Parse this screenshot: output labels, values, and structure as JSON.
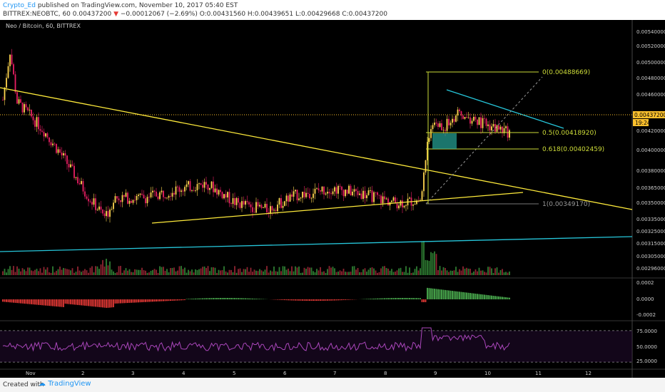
{
  "header": {
    "author": "Crypto_Ed",
    "published": "published on TradingView.com, November 10, 2017 05:40 EST",
    "symbol_line": "BITTREX:NEOBTC, 60",
    "last": "0.00437200",
    "change_arrow": "▼",
    "change": "−0.00012067 (−2.69%)",
    "ohlc": "O:0.00431560 H:0.00439651 L:0.00429668 C:0.00437200"
  },
  "pane_title": "Neo / Bitcoin, 60, BITTREX",
  "price_axis": {
    "labels": [
      "0.00540000",
      "0.00520000",
      "0.00500000",
      "0.00480000",
      "0.00460000",
      "0.00420000",
      "0.00400000",
      "0.00380000",
      "0.00365000",
      "0.00350000",
      "0.00335000",
      "0.00325000",
      "0.00315000",
      "0.00305000",
      "0.00296000"
    ],
    "current_price": "0.00437200",
    "countdown": "19:24"
  },
  "macd_axis": {
    "labels": [
      "0.0002",
      "0.0000",
      "-0.0002"
    ]
  },
  "rsi_axis": {
    "labels": [
      "75.0000",
      "50.0000",
      "25.0000"
    ]
  },
  "time_axis": {
    "labels": [
      "Nov",
      "2",
      "3",
      "4",
      "5",
      "6",
      "7",
      "8",
      "9",
      "10",
      "11",
      "12"
    ]
  },
  "fib_labels": [
    "0(0.00488669)",
    "0.5(0.00418920)",
    "0.618(0.00402459)",
    "1(0.00349170)"
  ],
  "colors": {
    "up": "#ffd54f",
    "down": "#e91e63",
    "trend": "#ffeb3b",
    "channel": "#26c6da",
    "rsi": "#ab47bc",
    "macd_pos": "#4caf50",
    "macd_neg": "#e53935"
  },
  "chart_data": {
    "type": "candlestick",
    "title": "Neo / Bitcoin, 60, BITTREX",
    "x": [
      "Nov 1",
      "Nov 2",
      "Nov 3",
      "Nov 4",
      "Nov 5",
      "Nov 6",
      "Nov 7",
      "Nov 8",
      "Nov 9",
      "Nov 10"
    ],
    "close": [
      0.0044,
      0.0038,
      0.00375,
      0.00372,
      0.00368,
      0.00372,
      0.00374,
      0.00372,
      0.0045,
      0.00437
    ],
    "ylim": [
      0.0029,
      0.0055
    ],
    "fib_levels": [
      {
        "level": "0",
        "price": 0.00488669
      },
      {
        "level": "0.5",
        "price": 0.0041892
      },
      {
        "level": "0.618",
        "price": 0.00402459
      },
      {
        "level": "1",
        "price": 0.0034917
      }
    ],
    "rsi_last": 50,
    "indicators": [
      "Volume",
      "MACD",
      "RSI"
    ]
  },
  "footer": {
    "created": "Created with",
    "brand": "TradingView"
  }
}
